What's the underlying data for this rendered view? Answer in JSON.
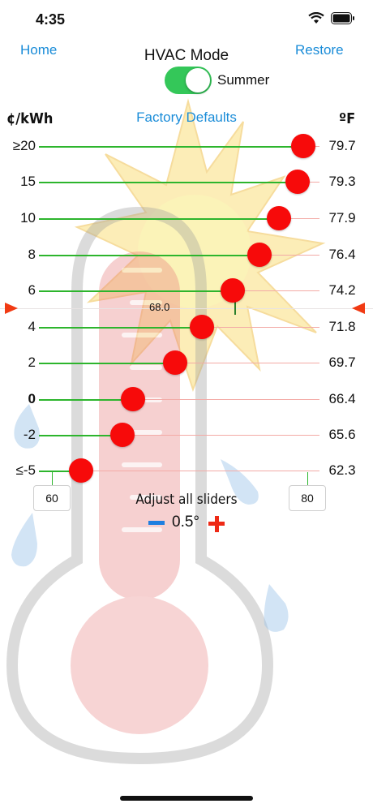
{
  "status_bar": {
    "time": "4:35"
  },
  "nav": {
    "home": "Home",
    "restore": "Restore"
  },
  "header": {
    "title": "HVAC Mode",
    "mode_label": "Summer",
    "mode_on": true
  },
  "columns": {
    "price_unit": "¢/kWh",
    "temp_unit": "ºF",
    "factory_defaults": "Factory Defaults"
  },
  "rows": [
    {
      "price": "≥20",
      "temp": "79.7",
      "bold": false
    },
    {
      "price": "15",
      "temp": "79.3",
      "bold": false
    },
    {
      "price": "10",
      "temp": "77.9",
      "bold": false
    },
    {
      "price": "8",
      "temp": "76.4",
      "bold": false
    },
    {
      "price": "6",
      "temp": "74.2",
      "bold": false
    },
    {
      "price": "4",
      "temp": "71.8",
      "bold": false
    },
    {
      "price": "2",
      "temp": "69.7",
      "bold": false
    },
    {
      "price": "0",
      "temp": "66.4",
      "bold": true
    },
    {
      "price": "-2",
      "temp": "65.6",
      "bold": false
    },
    {
      "price": "≤-5",
      "temp": "62.3",
      "bold": false
    }
  ],
  "current_marker": {
    "value": "68.0"
  },
  "scale": {
    "min": "60",
    "max": "80"
  },
  "adjust": {
    "label": "Adjust all sliders",
    "step": "0.5°"
  },
  "colors": {
    "accent_blue": "#1a8cd8",
    "slider_green": "#2db52d",
    "thumb_red": "#f70a0a",
    "toggle_green": "#34c759"
  }
}
